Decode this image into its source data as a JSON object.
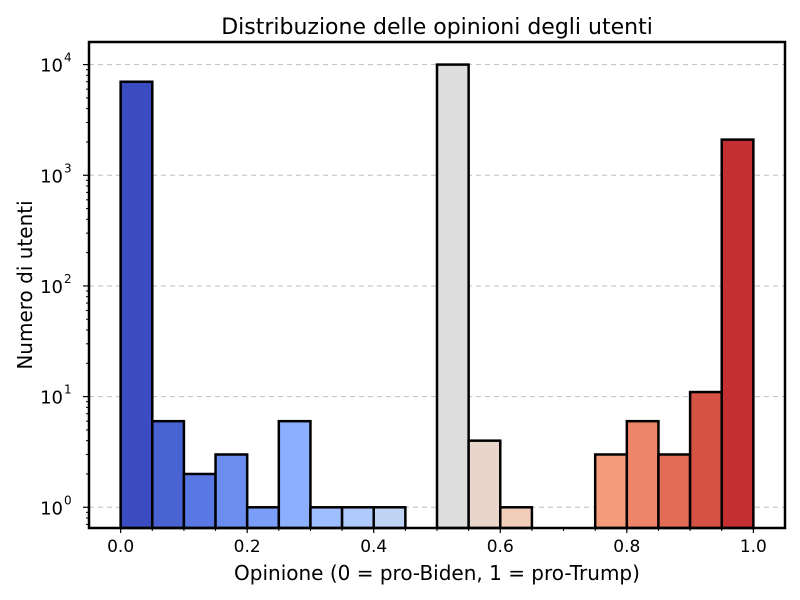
{
  "chart_data": {
    "type": "bar",
    "title": "Distribuzione delle opinioni degli utenti",
    "xlabel": "Opinione (0 = pro-Biden, 1 = pro-Trump)",
    "ylabel": "Numero di utenti",
    "xlim": [
      -0.05,
      1.05
    ],
    "ylim": [
      0.65,
      16000
    ],
    "yscale": "log",
    "grid": "horizontal dashed",
    "x_ticks": [
      0.0,
      0.2,
      0.4,
      0.6,
      0.8,
      1.0
    ],
    "x_tick_labels": [
      "0.0",
      "0.2",
      "0.4",
      "0.6",
      "0.8",
      "1.0"
    ],
    "y_ticks": [
      {
        "value": 1,
        "base": "10",
        "exp": "0"
      },
      {
        "value": 10,
        "base": "10",
        "exp": "1"
      },
      {
        "value": 100,
        "base": "10",
        "exp": "2"
      },
      {
        "value": 1000,
        "base": "10",
        "exp": "3"
      },
      {
        "value": 10000,
        "base": "10",
        "exp": "4"
      }
    ],
    "bins": [
      {
        "x0": 0.0,
        "x1": 0.05,
        "count": 7000,
        "color": "#3b4cc0"
      },
      {
        "x0": 0.05,
        "x1": 0.1,
        "count": 6,
        "color": "#4a63d3"
      },
      {
        "x0": 0.1,
        "x1": 0.15,
        "count": 2,
        "color": "#5a78e4"
      },
      {
        "x0": 0.15,
        "x1": 0.2,
        "count": 3,
        "color": "#6b8df0"
      },
      {
        "x0": 0.2,
        "x1": 0.25,
        "count": 1,
        "color": "#7b9ff9"
      },
      {
        "x0": 0.25,
        "x1": 0.3,
        "count": 6,
        "color": "#8db0fe"
      },
      {
        "x0": 0.3,
        "x1": 0.35,
        "count": 1,
        "color": "#9ebeff"
      },
      {
        "x0": 0.35,
        "x1": 0.4,
        "count": 1,
        "color": "#afcafc"
      },
      {
        "x0": 0.4,
        "x1": 0.45,
        "count": 1,
        "color": "#c0d4f5"
      },
      {
        "x0": 0.45,
        "x1": 0.5,
        "count": 0,
        "color": "#cfdaea"
      },
      {
        "x0": 0.5,
        "x1": 0.55,
        "count": 10000,
        "color": "#dddddd"
      },
      {
        "x0": 0.55,
        "x1": 0.6,
        "count": 4,
        "color": "#e8d6cc"
      },
      {
        "x0": 0.6,
        "x1": 0.65,
        "count": 1,
        "color": "#f1cdba"
      },
      {
        "x0": 0.65,
        "x1": 0.7,
        "count": 0,
        "color": "#f5c0a7"
      },
      {
        "x0": 0.7,
        "x1": 0.75,
        "count": 0,
        "color": "#f7b194"
      },
      {
        "x0": 0.75,
        "x1": 0.8,
        "count": 3,
        "color": "#f59c7d"
      },
      {
        "x0": 0.8,
        "x1": 0.85,
        "count": 6,
        "color": "#ee8468"
      },
      {
        "x0": 0.85,
        "x1": 0.9,
        "count": 3,
        "color": "#e36c55"
      },
      {
        "x0": 0.9,
        "x1": 0.95,
        "count": 11,
        "color": "#d65244"
      },
      {
        "x0": 0.95,
        "x1": 1.0,
        "count": 2100,
        "color": "#c43032"
      }
    ]
  }
}
